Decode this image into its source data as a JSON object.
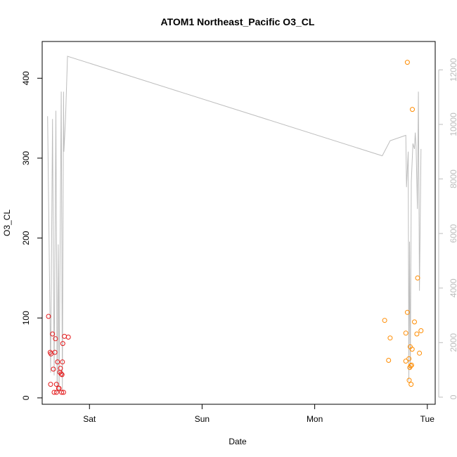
{
  "chart_data": {
    "type": "scatter",
    "title": "ATOM1 Northeast_Pacific O3_CL",
    "xlabel": "Date",
    "ylabel": "O3_CL",
    "x_tick_labels": [
      "Sat",
      "Sun",
      "Mon",
      "Tue"
    ],
    "x_range_days": [
      -0.42,
      3.07
    ],
    "y_left": {
      "range": [
        -8,
        446
      ],
      "ticks": [
        0,
        100,
        200,
        300,
        400
      ]
    },
    "y_right": {
      "range": [
        -260,
        13040
      ],
      "ticks": [
        0,
        2000,
        4000,
        6000,
        8000,
        10000,
        12000
      ],
      "color": "#bdbdbd"
    },
    "series": [
      {
        "color": "#e41a1c",
        "points": [
          {
            "x": -0.364,
            "y": 102
          },
          {
            "x": -0.349,
            "y": 57
          },
          {
            "x": -0.342,
            "y": 55
          },
          {
            "x": -0.345,
            "y": 17
          },
          {
            "x": -0.328,
            "y": 80
          },
          {
            "x": -0.321,
            "y": 36
          },
          {
            "x": -0.314,
            "y": 7
          },
          {
            "x": -0.307,
            "y": 57
          },
          {
            "x": -0.302,
            "y": 74
          },
          {
            "x": -0.293,
            "y": 17
          },
          {
            "x": -0.293,
            "y": 7
          },
          {
            "x": -0.284,
            "y": 45
          },
          {
            "x": -0.274,
            "y": 12
          },
          {
            "x": -0.27,
            "y": 12
          },
          {
            "x": -0.263,
            "y": 32
          },
          {
            "x": -0.258,
            "y": 37
          },
          {
            "x": -0.251,
            "y": 30
          },
          {
            "x": -0.247,
            "y": 7
          },
          {
            "x": -0.244,
            "y": 29
          },
          {
            "x": -0.24,
            "y": 45
          },
          {
            "x": -0.237,
            "y": 68
          },
          {
            "x": -0.23,
            "y": 7
          },
          {
            "x": -0.223,
            "y": 77
          },
          {
            "x": -0.188,
            "y": 76
          }
        ]
      },
      {
        "color": "#ff8c00",
        "points": [
          {
            "x": 2.621,
            "y": 97
          },
          {
            "x": 2.656,
            "y": 47
          },
          {
            "x": 2.67,
            "y": 75
          },
          {
            "x": 2.809,
            "y": 81
          },
          {
            "x": 2.809,
            "y": 46
          },
          {
            "x": 2.823,
            "y": 107
          },
          {
            "x": 2.823,
            "y": 420
          },
          {
            "x": 2.837,
            "y": 49
          },
          {
            "x": 2.839,
            "y": 22
          },
          {
            "x": 2.844,
            "y": 38
          },
          {
            "x": 2.848,
            "y": 64
          },
          {
            "x": 2.853,
            "y": 40
          },
          {
            "x": 2.856,
            "y": 17
          },
          {
            "x": 2.86,
            "y": 41
          },
          {
            "x": 2.865,
            "y": 61
          },
          {
            "x": 2.867,
            "y": 361
          },
          {
            "x": 2.886,
            "y": 95
          },
          {
            "x": 2.907,
            "y": 80
          },
          {
            "x": 2.914,
            "y": 150
          },
          {
            "x": 2.93,
            "y": 56
          },
          {
            "x": 2.944,
            "y": 84
          }
        ]
      }
    ],
    "line": {
      "color": "#bdbdbd",
      "axis": "right",
      "points": [
        {
          "x": -0.372,
          "y": 10300
        },
        {
          "x": -0.345,
          "y": 900
        },
        {
          "x": -0.328,
          "y": 10200
        },
        {
          "x": -0.314,
          "y": 800
        },
        {
          "x": -0.298,
          "y": 10500
        },
        {
          "x": -0.287,
          "y": 200
        },
        {
          "x": -0.277,
          "y": 5600
        },
        {
          "x": -0.27,
          "y": 200
        },
        {
          "x": -0.251,
          "y": 11200
        },
        {
          "x": -0.241,
          "y": 200
        },
        {
          "x": -0.23,
          "y": 11200
        },
        {
          "x": -0.227,
          "y": 9000
        },
        {
          "x": -0.213,
          "y": 10200
        },
        {
          "x": -0.195,
          "y": 12500
        },
        {
          "x": 2.6,
          "y": 8850
        },
        {
          "x": 2.67,
          "y": 9400
        },
        {
          "x": 2.809,
          "y": 9600
        },
        {
          "x": 2.815,
          "y": 7700
        },
        {
          "x": 2.83,
          "y": 9000
        },
        {
          "x": 2.836,
          "y": 600
        },
        {
          "x": 2.842,
          "y": 5700
        },
        {
          "x": 2.849,
          "y": 1000
        },
        {
          "x": 2.858,
          "y": 7900
        },
        {
          "x": 2.872,
          "y": 9300
        },
        {
          "x": 2.886,
          "y": 9100
        },
        {
          "x": 2.893,
          "y": 9700
        },
        {
          "x": 2.9,
          "y": 9200
        },
        {
          "x": 2.912,
          "y": 6900
        },
        {
          "x": 2.921,
          "y": 11200
        },
        {
          "x": 2.93,
          "y": 3900
        },
        {
          "x": 2.944,
          "y": 9100
        }
      ]
    }
  }
}
